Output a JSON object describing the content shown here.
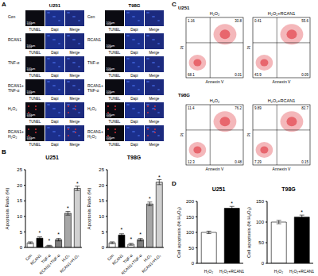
{
  "panel_labels": [
    "A",
    "B",
    "C",
    "D"
  ],
  "tunel_panel": {
    "cell_lines": [
      "U251",
      "T98G"
    ],
    "conditions": [
      "Con",
      "RCAN1",
      "TNF-α",
      "RCAN1+TNF-α",
      "H₂O₂",
      "RCAN1+H₂O₂"
    ],
    "channels": [
      "TUNEL",
      "Dapi",
      "Merge"
    ],
    "scale_bar": "100μm"
  },
  "flow_panel": {
    "cell_lines": [
      "U251",
      "T98G"
    ],
    "treatments": [
      "H₂O₂",
      "H₂O₂+RCAN1"
    ],
    "x_label": "Annexin V",
    "y_label": "PI",
    "quadrants": {
      "U251": [
        {
          "upper_left": 1.16,
          "upper_right": 30.8,
          "lower_left": 68.1,
          "lower_right": 0.01
        },
        {
          "upper_left": 0.41,
          "upper_right": 55.6,
          "lower_left": 43.9,
          "lower_right": 0.09
        }
      ],
      "T98G": [
        {
          "upper_left": 11.4,
          "upper_right": 76.2,
          "lower_left": 12.3,
          "lower_right": 0.48
        },
        {
          "upper_left": 9.89,
          "upper_right": 82.7,
          "lower_left": 7.29,
          "lower_right": 0.15
        }
      ]
    }
  },
  "chart_data": [
    {
      "type": "bar",
      "title": "U251",
      "categories": [
        "Con",
        "RCAN1",
        "TNF-α",
        "RCAN1+TNF-α",
        "H₂O₂",
        "RCAN1+H₂O₂"
      ],
      "values": [
        1.5,
        3,
        0.5,
        2.5,
        11,
        19
      ],
      "errors": [
        0.3,
        0.4,
        0.2,
        0.4,
        0.6,
        0.7
      ],
      "colors": [
        "#ffffff",
        "#000000",
        "#ffffff",
        "#808080",
        "#a6a6a6",
        "#d0d0d0"
      ],
      "annotations": [
        null,
        "*",
        "*",
        "*",
        "*",
        "*"
      ],
      "ylabel": "Apoptosis Ratio (%)",
      "ylim": [
        0,
        25
      ],
      "yticks": [
        0,
        5,
        10,
        15,
        20,
        25
      ]
    },
    {
      "type": "bar",
      "title": "T98G",
      "categories": [
        "Con",
        "RCAN1",
        "TNF-α",
        "RCAN1+TNF-α",
        "H₂O₂",
        "RCAN1+H₂O₂"
      ],
      "values": [
        1.5,
        4,
        1,
        2.5,
        14,
        21
      ],
      "errors": [
        0.3,
        0.4,
        0.3,
        0.4,
        0.6,
        0.8
      ],
      "colors": [
        "#ffffff",
        "#000000",
        "#ffffff",
        "#808080",
        "#a6a6a6",
        "#d0d0d0"
      ],
      "annotations": [
        null,
        "*",
        "*",
        "*",
        "*",
        "*"
      ],
      "ylabel": "Apoptosis Ratio (%)",
      "ylim": [
        0,
        25
      ],
      "yticks": [
        0,
        5,
        10,
        15,
        20,
        25
      ]
    },
    {
      "type": "bar",
      "title": "U251",
      "categories": [
        "H₂O₂",
        "H₂O₂+RCAN1"
      ],
      "values": [
        100,
        178
      ],
      "errors": [
        4,
        6
      ],
      "colors": [
        "#ffffff",
        "#000000"
      ],
      "annotations": [
        null,
        "*"
      ],
      "ylabel": "Cell apoptosis (% H₂O₂)",
      "ylim": [
        0,
        200
      ],
      "yticks": [
        0,
        50,
        100,
        150,
        200
      ]
    },
    {
      "type": "bar",
      "title": "T98G",
      "categories": [
        "H₂O₂",
        "H₂O₂+RCAN1"
      ],
      "values": [
        100,
        112
      ],
      "errors": [
        4,
        5
      ],
      "colors": [
        "#ffffff",
        "#000000"
      ],
      "annotations": [
        null,
        "*"
      ],
      "ylabel": "Cell apoptosis (% H₂O₂)",
      "ylim": [
        0,
        150
      ],
      "yticks": [
        0,
        50,
        100,
        150
      ]
    }
  ]
}
